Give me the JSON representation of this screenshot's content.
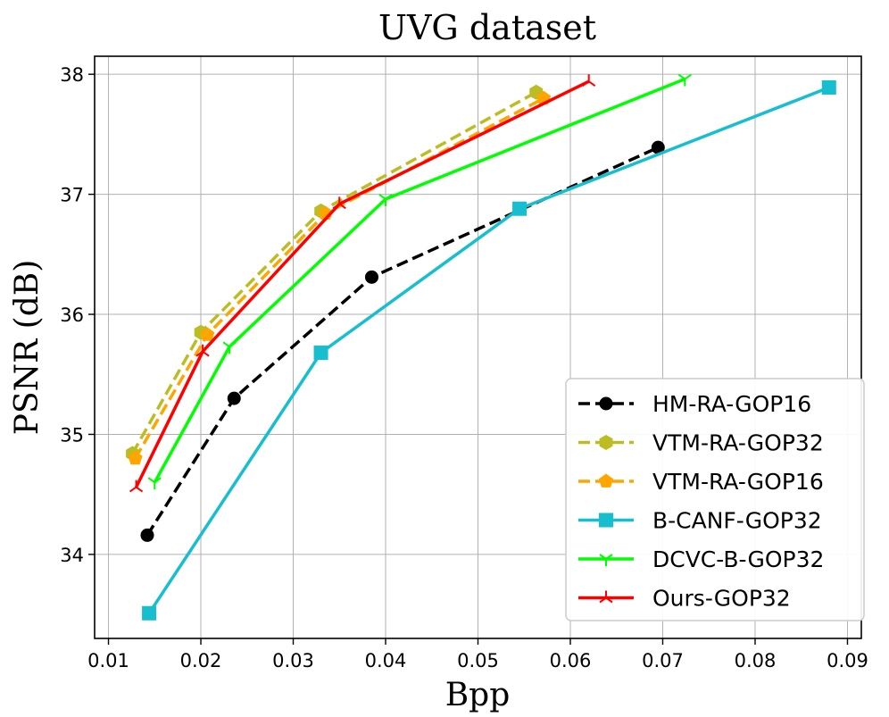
{
  "chart_data": {
    "type": "line",
    "title": "UVG dataset",
    "xlabel": "Bpp",
    "ylabel": "PSNR (dB)",
    "xlim": [
      0.0085,
      0.0915
    ],
    "ylim": [
      33.3,
      38.15
    ],
    "xticks": [
      0.01,
      0.02,
      0.03,
      0.04,
      0.05,
      0.06,
      0.07,
      0.08,
      0.09
    ],
    "xtick_labels": [
      "0.01",
      "0.02",
      "0.03",
      "0.04",
      "0.05",
      "0.06",
      "0.07",
      "0.08",
      "0.09"
    ],
    "yticks": [
      34,
      35,
      36,
      37,
      38
    ],
    "ytick_labels": [
      "34",
      "35",
      "36",
      "37",
      "38"
    ],
    "grid": true,
    "legend_position": "lower-right",
    "series": [
      {
        "name": "HM-RA-GOP16",
        "color": "#000000",
        "dash": "dashed",
        "marker": "circle",
        "x": [
          0.0142,
          0.0236,
          0.0385,
          0.0695
        ],
        "y": [
          34.16,
          35.3,
          36.31,
          37.39
        ]
      },
      {
        "name": "VTM-RA-GOP32",
        "color": "#bcbd22",
        "dash": "dashed",
        "marker": "hexagon",
        "x": [
          0.0126,
          0.02,
          0.033,
          0.0563
        ],
        "y": [
          34.84,
          35.85,
          36.86,
          37.85
        ]
      },
      {
        "name": "VTM-RA-GOP16",
        "color": "#ffa500",
        "dash": "dashed",
        "marker": "pentagon",
        "x": [
          0.0129,
          0.0207,
          0.0335,
          0.0571
        ],
        "y": [
          34.8,
          35.83,
          36.84,
          37.8
        ]
      },
      {
        "name": "B-CANF-GOP32",
        "color": "#17becf",
        "dash": "solid",
        "marker": "square",
        "x": [
          0.0144,
          0.033,
          0.0545,
          0.088
        ],
        "y": [
          33.51,
          35.68,
          36.88,
          37.89
        ]
      },
      {
        "name": "DCVC-B-GOP32",
        "color": "#00ff00",
        "dash": "solid",
        "marker": "tri_down",
        "x": [
          0.015,
          0.0231,
          0.04,
          0.0724
        ],
        "y": [
          34.6,
          35.73,
          36.96,
          37.96
        ]
      },
      {
        "name": "Ours-GOP32",
        "color": "#ff0000",
        "dash": "solid",
        "marker": "tri_up",
        "x": [
          0.013,
          0.0202,
          0.035,
          0.062
        ],
        "y": [
          34.56,
          35.69,
          36.92,
          37.94
        ]
      }
    ]
  }
}
